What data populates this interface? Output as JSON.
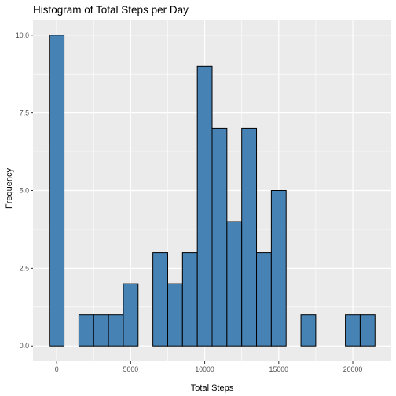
{
  "chart_data": {
    "type": "bar",
    "title": "Histogram of Total Steps per Day",
    "xlabel": "Total Steps",
    "ylabel": "Frequency",
    "bin_width": 1000,
    "bins": [
      {
        "center": 0,
        "count": 10
      },
      {
        "center": 1000,
        "count": 0
      },
      {
        "center": 2000,
        "count": 1
      },
      {
        "center": 3000,
        "count": 1
      },
      {
        "center": 4000,
        "count": 1
      },
      {
        "center": 5000,
        "count": 2
      },
      {
        "center": 6000,
        "count": 0
      },
      {
        "center": 7000,
        "count": 3
      },
      {
        "center": 8000,
        "count": 2
      },
      {
        "center": 9000,
        "count": 3
      },
      {
        "center": 10000,
        "count": 9
      },
      {
        "center": 11000,
        "count": 7
      },
      {
        "center": 12000,
        "count": 4
      },
      {
        "center": 13000,
        "count": 7
      },
      {
        "center": 14000,
        "count": 3
      },
      {
        "center": 15000,
        "count": 5
      },
      {
        "center": 16000,
        "count": 0
      },
      {
        "center": 17000,
        "count": 1
      },
      {
        "center": 18000,
        "count": 0
      },
      {
        "center": 19000,
        "count": 0
      },
      {
        "center": 20000,
        "count": 1
      },
      {
        "center": 21000,
        "count": 1
      }
    ],
    "xlim": [
      -1600,
      22600
    ],
    "ylim": [
      -0.5,
      10.5
    ],
    "x_ticks": [
      0,
      5000,
      10000,
      15000,
      20000
    ],
    "x_tick_labels": [
      "0",
      "5000",
      "10000",
      "15000",
      "20000"
    ],
    "y_ticks": [
      0,
      2.5,
      5,
      7.5,
      10
    ],
    "y_tick_labels": [
      "0.0",
      "2.5",
      "5.0",
      "7.5",
      "10.0"
    ],
    "grid": true,
    "fill_color": "#4682B4",
    "edge_color": "#000000",
    "panel_color": "#EBEBEB",
    "grid_color": "#FFFFFF"
  }
}
